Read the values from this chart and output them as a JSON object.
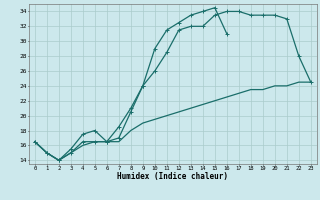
{
  "xlabel": "Humidex (Indice chaleur)",
  "bg_color": "#cce8ec",
  "grid_color": "#aacccc",
  "line_color": "#1a6e6a",
  "xlim": [
    -0.5,
    23.5
  ],
  "ylim": [
    13.5,
    35.0
  ],
  "xticks": [
    0,
    1,
    2,
    3,
    4,
    5,
    6,
    7,
    8,
    9,
    10,
    11,
    12,
    13,
    14,
    15,
    16,
    17,
    18,
    19,
    20,
    21,
    22,
    23
  ],
  "yticks": [
    14,
    16,
    18,
    20,
    22,
    24,
    26,
    28,
    30,
    32,
    34
  ],
  "line1_x": [
    0,
    1,
    2,
    3,
    4,
    5,
    6,
    7,
    8,
    9,
    10,
    11,
    12,
    13,
    14,
    15,
    16,
    17,
    18,
    19,
    20,
    21,
    22,
    23
  ],
  "line1_y": [
    16.5,
    15.0,
    14.0,
    15.0,
    16.5,
    16.5,
    16.5,
    17.0,
    20.5,
    24.0,
    26.0,
    28.5,
    31.5,
    32.0,
    32.0,
    33.5,
    34.0,
    34.0,
    33.5,
    33.5,
    33.5,
    33.0,
    28.0,
    24.5
  ],
  "line2_x": [
    0,
    1,
    2,
    3,
    4,
    5,
    6,
    7,
    8,
    9,
    10,
    11,
    12,
    13,
    14,
    15,
    16
  ],
  "line2_y": [
    16.5,
    15.0,
    14.0,
    15.5,
    17.5,
    18.0,
    16.5,
    18.5,
    21.0,
    24.0,
    29.0,
    31.5,
    32.5,
    33.5,
    34.0,
    34.5,
    31.0
  ],
  "line3_x": [
    0,
    1,
    2,
    3,
    4,
    5,
    6,
    7,
    8,
    9,
    10,
    11,
    12,
    13,
    14,
    15,
    16,
    17,
    18,
    19,
    20,
    21,
    22,
    23
  ],
  "line3_y": [
    16.5,
    15.0,
    14.0,
    15.0,
    16.0,
    16.5,
    16.5,
    16.5,
    18.0,
    19.0,
    19.5,
    20.0,
    20.5,
    21.0,
    21.5,
    22.0,
    22.5,
    23.0,
    23.5,
    23.5,
    24.0,
    24.0,
    24.5,
    24.5
  ]
}
